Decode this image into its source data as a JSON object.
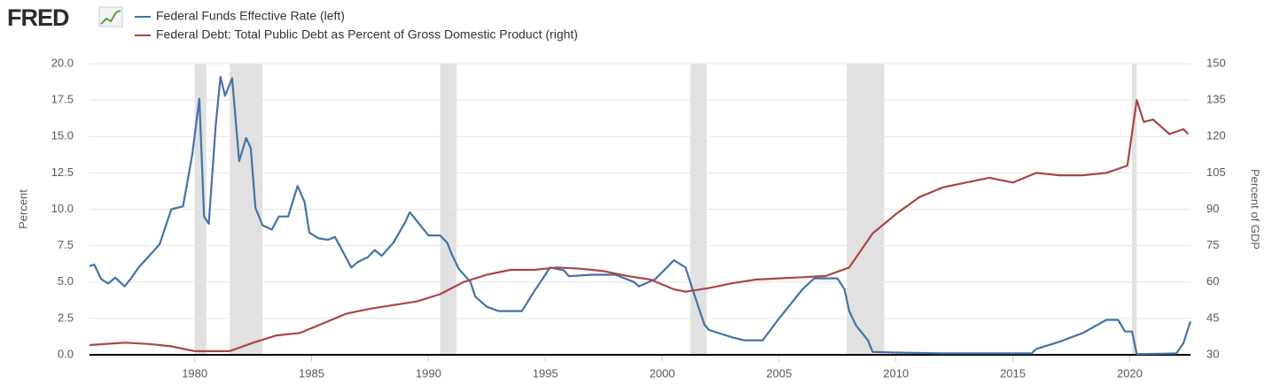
{
  "logo": "FRED",
  "chart_data": {
    "type": "line",
    "y_label": "Percent",
    "y2_label": "Percent of GDP",
    "xlim": [
      1975.5,
      2022.6
    ],
    "xticks": [
      1980,
      1985,
      1990,
      1995,
      2000,
      2005,
      2010,
      2015,
      2020
    ],
    "ylim": [
      0,
      20
    ],
    "yticks": [
      {
        "value": 0,
        "label": "0.0"
      },
      2.5,
      {
        "value": 5,
        "label": "5.0"
      },
      7.5,
      {
        "value": 10,
        "label": "10.0"
      },
      12.5,
      {
        "value": 15,
        "label": "15.0"
      },
      17.5,
      {
        "value": 20,
        "label": "20.0"
      }
    ],
    "y2lim": [
      30,
      150
    ],
    "y2ticks": [
      30,
      45,
      60,
      75,
      90,
      105,
      120,
      135,
      150
    ],
    "grid": true,
    "shaded_periods": [
      [
        1980.0,
        1980.5
      ],
      [
        1981.5,
        1982.9
      ],
      [
        1990.5,
        1991.2
      ],
      [
        2001.2,
        2001.9
      ],
      [
        2007.9,
        2009.5
      ],
      [
        2020.1,
        2020.3
      ]
    ],
    "series": [
      {
        "name": "Federal Funds Effective Rate (left)",
        "color": "#4572a7",
        "axis": "y",
        "x": [
          1975.5,
          1975.7,
          1976.0,
          1976.3,
          1976.6,
          1977.0,
          1977.3,
          1977.6,
          1978.0,
          1978.5,
          1979.0,
          1979.5,
          1979.9,
          1980.2,
          1980.4,
          1980.6,
          1980.9,
          1981.1,
          1981.3,
          1981.6,
          1981.9,
          1982.2,
          1982.4,
          1982.6,
          1982.9,
          1983.3,
          1983.6,
          1984.0,
          1984.4,
          1984.7,
          1984.9,
          1985.3,
          1985.7,
          1986.0,
          1986.4,
          1986.7,
          1987.0,
          1987.4,
          1987.7,
          1988.0,
          1988.5,
          1989.0,
          1989.2,
          1989.6,
          1990.0,
          1990.5,
          1990.8,
          1991.0,
          1991.3,
          1991.8,
          1992.0,
          1992.5,
          1993.0,
          1994.0,
          1994.5,
          1995.0,
          1995.2,
          1995.8,
          1996.0,
          1997.0,
          1998.0,
          1998.8,
          1999.0,
          1999.7,
          2000.2,
          2000.5,
          2001.0,
          2001.3,
          2001.8,
          2002.0,
          2003.0,
          2003.5,
          2004.3,
          2005.0,
          2006.0,
          2006.5,
          2007.5,
          2007.8,
          2008.0,
          2008.3,
          2008.8,
          2009.0,
          2010.0,
          2012.0,
          2015.8,
          2016.0,
          2017.0,
          2018.0,
          2019.0,
          2019.5,
          2019.8,
          2020.1,
          2020.3,
          2021.5,
          2022.0,
          2022.3,
          2022.6
        ],
        "values": [
          6.1,
          6.2,
          5.2,
          4.9,
          5.3,
          4.7,
          5.3,
          6.0,
          6.7,
          7.6,
          10.0,
          10.2,
          13.8,
          17.6,
          9.5,
          9.0,
          15.8,
          19.1,
          17.8,
          19.0,
          13.3,
          14.9,
          14.2,
          10.1,
          8.9,
          8.6,
          9.5,
          9.5,
          11.6,
          10.5,
          8.4,
          8.0,
          7.9,
          8.1,
          6.9,
          6.0,
          6.4,
          6.7,
          7.2,
          6.8,
          7.7,
          9.1,
          9.8,
          9.0,
          8.2,
          8.2,
          7.7,
          6.9,
          5.9,
          5.0,
          4.0,
          3.3,
          3.0,
          3.0,
          4.3,
          5.5,
          6.0,
          5.8,
          5.4,
          5.5,
          5.5,
          5.0,
          4.7,
          5.2,
          6.0,
          6.5,
          6.0,
          4.5,
          2.1,
          1.7,
          1.2,
          1.0,
          1.0,
          2.5,
          4.5,
          5.25,
          5.25,
          4.5,
          3.0,
          2.0,
          1.0,
          0.2,
          0.15,
          0.1,
          0.1,
          0.4,
          0.9,
          1.5,
          2.4,
          2.4,
          1.6,
          1.6,
          0.05,
          0.08,
          0.1,
          0.8,
          2.3
        ]
      },
      {
        "name": "Federal Debt: Total Public Debt as Percent of Gross Domestic Product (right)",
        "color": "#aa4643",
        "axis": "y2",
        "x": [
          1975.5,
          1977.0,
          1978.0,
          1979.0,
          1980.0,
          1981.5,
          1982.5,
          1983.5,
          1984.5,
          1985.5,
          1986.5,
          1987.5,
          1988.5,
          1989.5,
          1990.5,
          1991.5,
          1992.5,
          1993.5,
          1994.5,
          1995.5,
          1996.5,
          1997.5,
          1998.5,
          1999.5,
          2000.5,
          2001.0,
          2002.0,
          2003.0,
          2004.0,
          2005.0,
          2006.0,
          2007.0,
          2008.0,
          2008.5,
          2009.0,
          2010.0,
          2011.0,
          2012.0,
          2013.0,
          2014.0,
          2015.0,
          2016.0,
          2017.0,
          2018.0,
          2019.0,
          2019.9,
          2020.3,
          2020.6,
          2021.0,
          2021.7,
          2022.3,
          2022.5
        ],
        "values": [
          34,
          35,
          34.5,
          33.5,
          31.5,
          31.5,
          35,
          38,
          39,
          43,
          47,
          49,
          50.5,
          52,
          55,
          60,
          63,
          65,
          65,
          66,
          65.5,
          64.5,
          62.5,
          61,
          57,
          56,
          57.5,
          59.5,
          61,
          61.5,
          62,
          62.5,
          66,
          73,
          80,
          88,
          95,
          99,
          101,
          103,
          101,
          105,
          104,
          104,
          105,
          108,
          135,
          126,
          127,
          121,
          123,
          121
        ]
      }
    ]
  }
}
